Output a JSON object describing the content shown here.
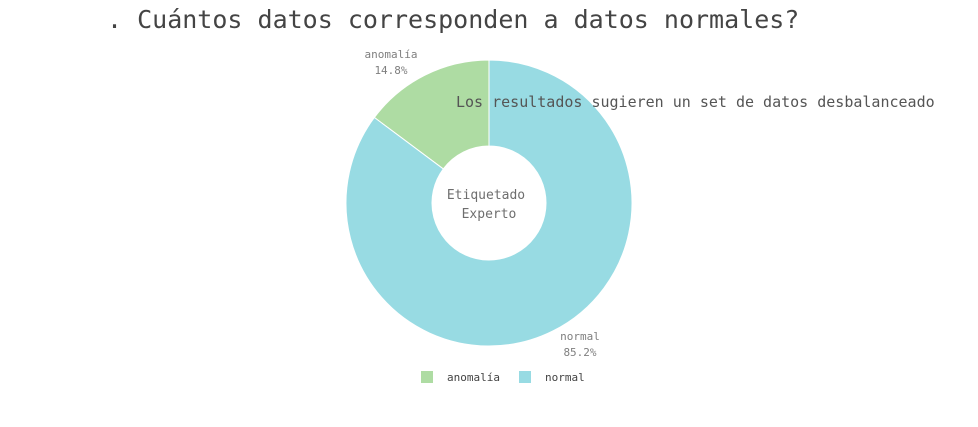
{
  "chart_data": {
    "type": "pie",
    "hole": true,
    "title": ". Cuántos datos corresponden a datos normales?",
    "annotation": "Los resultados sugieren un set de datos desbalanceado",
    "center_label": [
      "Etiquetado",
      "Experto"
    ],
    "slices": [
      {
        "label": "anomalía",
        "value": 14.8,
        "pct_text": "14.8%",
        "color": "#aedca3"
      },
      {
        "label": "normal",
        "value": 85.2,
        "pct_text": "85.2%",
        "color": "#98dbe3"
      }
    ],
    "legend": {
      "placement": "bottom-center",
      "items": [
        {
          "label": "anomalía",
          "color": "#aedca3"
        },
        {
          "label": "normal",
          "color": "#98dbe3"
        }
      ]
    }
  }
}
